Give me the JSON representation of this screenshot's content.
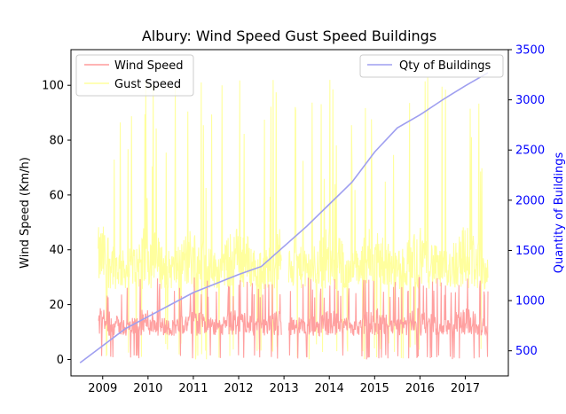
{
  "chart_data": {
    "type": "line",
    "title": "Albury:  Wind Speed Gust Speed Buildings",
    "ylabel": "Wind Speed (Km/h)",
    "ylabel_right": "Quantity of Buildings",
    "xlim": [
      2008.3,
      2017.95
    ],
    "ylim": [
      -6,
      113
    ],
    "ylim_right": [
      250,
      3500
    ],
    "x_ticks": [
      "2009",
      "2010",
      "2011",
      "2012",
      "2013",
      "2014",
      "2015",
      "2016",
      "2017"
    ],
    "y_ticks": [
      "0",
      "20",
      "40",
      "60",
      "80",
      "100"
    ],
    "y_ticks_right": [
      "500",
      "1000",
      "1500",
      "2000",
      "2500",
      "3000",
      "3500"
    ],
    "legend_left": {
      "placement": "upper-left",
      "entries": [
        "Wind Speed",
        "Gust Speed"
      ]
    },
    "legend_right": {
      "placement": "upper-right",
      "entries": [
        "Qty of Buildings"
      ]
    },
    "colors": {
      "wind": "#ff9b9b",
      "gust": "#ffff9e",
      "buildings": "#9f9ff0",
      "right_axis": "#0000ff"
    },
    "series": [
      {
        "name": "Qty of Buildings",
        "axis": "right",
        "x": [
          2008.5,
          2009.0,
          2009.5,
          2010.0,
          2010.5,
          2011.0,
          2011.5,
          2012.0,
          2012.5,
          2013.0,
          2013.5,
          2014.0,
          2014.5,
          2015.0,
          2015.5,
          2016.0,
          2016.5,
          2017.0,
          2017.5
        ],
        "values": [
          380,
          550,
          720,
          840,
          960,
          1080,
          1170,
          1260,
          1340,
          1540,
          1740,
          1960,
          2180,
          2480,
          2720,
          2850,
          3000,
          3140,
          3270
        ]
      },
      {
        "name": "Wind Speed",
        "axis": "left",
        "x_range": [
          2008.9,
          2017.5
        ],
        "typical_range": [
          4,
          30
        ],
        "peak": 30
      },
      {
        "name": "Gust Speed",
        "axis": "left",
        "x_range": [
          2008.9,
          2017.5
        ],
        "typical_range": [
          15,
          80
        ],
        "peak": 105
      }
    ]
  }
}
